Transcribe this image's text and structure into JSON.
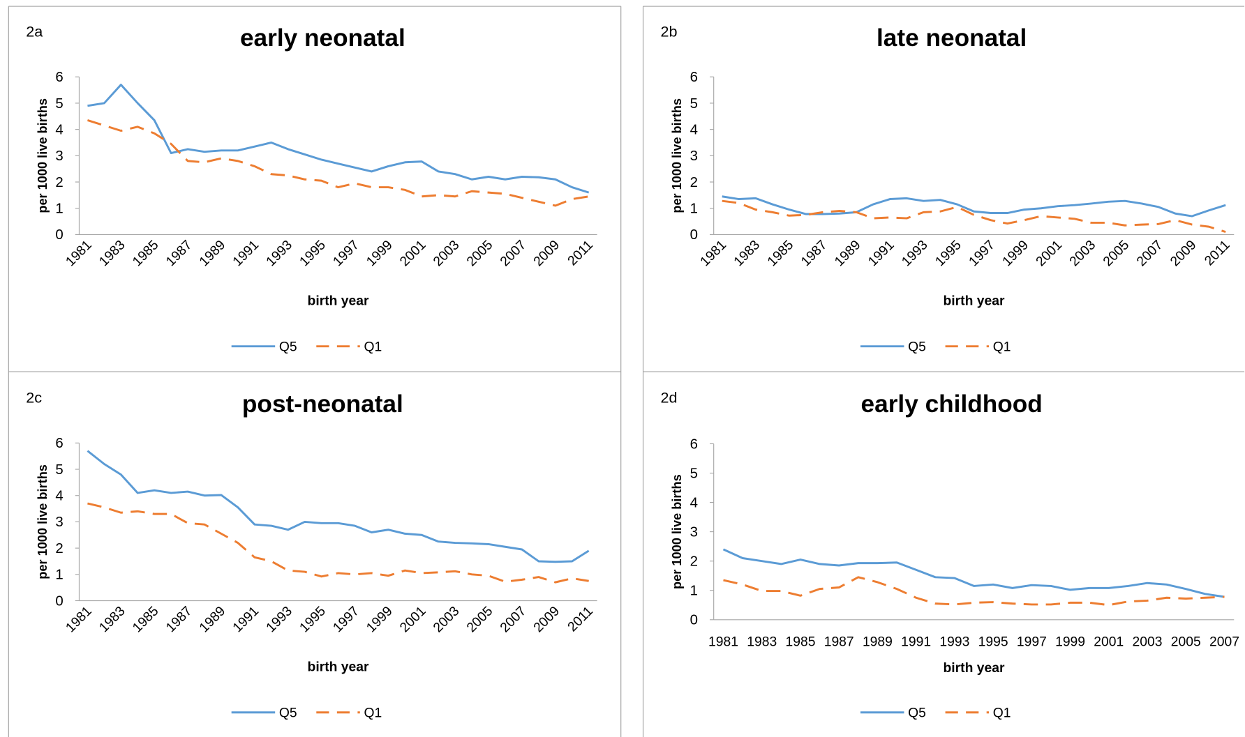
{
  "chart_data": [
    {
      "type": "line",
      "label": "2a",
      "title": "early neonatal",
      "ylabel": "per 1000 live births",
      "xlabel": "birth year",
      "categories": [
        1981,
        null,
        1983,
        null,
        1985,
        null,
        1987,
        null,
        1989,
        null,
        1991,
        null,
        1993,
        null,
        1995,
        null,
        1997,
        null,
        1999,
        null,
        2001,
        null,
        2003,
        null,
        2005,
        null,
        2007,
        null,
        2009,
        null,
        2011
      ],
      "ylim": [
        0,
        6
      ],
      "yticks": [
        0,
        1,
        2,
        3,
        4,
        5,
        6
      ],
      "series": [
        {
          "name": "Q5",
          "color": "#5b9bd5",
          "dashed": false,
          "values": [
            4.9,
            5.0,
            5.7,
            5.0,
            4.35,
            3.1,
            3.25,
            3.15,
            3.2,
            3.2,
            3.35,
            3.5,
            3.25,
            3.05,
            2.85,
            2.7,
            2.55,
            2.4,
            2.6,
            2.75,
            2.78,
            2.4,
            2.3,
            2.1,
            2.2,
            2.1,
            2.2,
            2.18,
            2.1,
            1.8,
            1.6
          ]
        },
        {
          "name": "Q1",
          "color": "#ed7d31",
          "dashed": true,
          "values": [
            4.35,
            4.15,
            3.95,
            4.1,
            3.85,
            3.45,
            2.8,
            2.75,
            2.9,
            2.8,
            2.6,
            2.3,
            2.25,
            2.1,
            2.05,
            1.8,
            1.95,
            1.8,
            1.8,
            1.7,
            1.45,
            1.5,
            1.45,
            1.65,
            1.6,
            1.55,
            1.4,
            1.25,
            1.1,
            1.35,
            1.45
          ]
        }
      ]
    },
    {
      "type": "line",
      "label": "2b",
      "title": "late neonatal",
      "ylabel": "per 1000 live births",
      "xlabel": "birth year",
      "categories": [
        1981,
        null,
        1983,
        null,
        1985,
        null,
        1987,
        null,
        1989,
        null,
        1991,
        null,
        1993,
        null,
        1995,
        null,
        1997,
        null,
        1999,
        null,
        2001,
        null,
        2003,
        null,
        2005,
        null,
        2007,
        null,
        2009,
        null,
        2011
      ],
      "ylim": [
        0,
        6
      ],
      "yticks": [
        0,
        1,
        2,
        3,
        4,
        5,
        6
      ],
      "series": [
        {
          "name": "Q5",
          "color": "#5b9bd5",
          "dashed": false,
          "values": [
            1.45,
            1.35,
            1.38,
            1.15,
            0.95,
            0.78,
            0.78,
            0.8,
            0.85,
            1.15,
            1.35,
            1.38,
            1.28,
            1.32,
            1.15,
            0.88,
            0.82,
            0.82,
            0.95,
            1.0,
            1.08,
            1.12,
            1.18,
            1.25,
            1.28,
            1.18,
            1.05,
            0.8,
            0.7,
            0.92,
            1.12
          ]
        },
        {
          "name": "Q1",
          "color": "#ed7d31",
          "dashed": true,
          "values": [
            1.28,
            1.2,
            0.95,
            0.85,
            0.72,
            0.75,
            0.85,
            0.9,
            0.85,
            0.62,
            0.65,
            0.62,
            0.85,
            0.88,
            1.05,
            0.75,
            0.55,
            0.42,
            0.55,
            0.7,
            0.65,
            0.6,
            0.45,
            0.45,
            0.35,
            0.38,
            0.4,
            0.55,
            0.38,
            0.3,
            0.1
          ]
        }
      ]
    },
    {
      "type": "line",
      "label": "2c",
      "title": "post-neonatal",
      "ylabel": "per 1000 live births",
      "xlabel": "birth year",
      "categories": [
        1981,
        null,
        1983,
        null,
        1985,
        null,
        1987,
        null,
        1989,
        null,
        1991,
        null,
        1993,
        null,
        1995,
        null,
        1997,
        null,
        1999,
        null,
        2001,
        null,
        2003,
        null,
        2005,
        null,
        2007,
        null,
        2009,
        null,
        2011
      ],
      "ylim": [
        0,
        6
      ],
      "yticks": [
        0,
        1,
        2,
        3,
        4,
        5,
        6
      ],
      "series": [
        {
          "name": "Q5",
          "color": "#5b9bd5",
          "dashed": false,
          "values": [
            5.7,
            5.2,
            4.8,
            4.1,
            4.2,
            4.1,
            4.15,
            4.0,
            4.02,
            3.55,
            2.9,
            2.85,
            2.7,
            3.0,
            2.95,
            2.95,
            2.85,
            2.6,
            2.7,
            2.55,
            2.5,
            2.25,
            2.2,
            2.18,
            2.15,
            2.05,
            1.95,
            1.5,
            1.48,
            1.5,
            1.9
          ]
        },
        {
          "name": "Q1",
          "color": "#ed7d31",
          "dashed": true,
          "values": [
            3.7,
            3.55,
            3.35,
            3.4,
            3.3,
            3.3,
            2.95,
            2.9,
            2.55,
            2.2,
            1.65,
            1.5,
            1.15,
            1.1,
            0.92,
            1.05,
            1.0,
            1.05,
            0.95,
            1.15,
            1.05,
            1.08,
            1.12,
            1.0,
            0.95,
            0.72,
            0.8,
            0.9,
            0.7,
            0.85,
            0.75
          ]
        }
      ]
    },
    {
      "type": "line",
      "label": "2d",
      "title": "early childhood",
      "ylabel": "per 1000 live births",
      "xlabel": "birth year",
      "categories": [
        1981,
        null,
        1983,
        null,
        1985,
        null,
        1987,
        null,
        1989,
        null,
        1991,
        null,
        1993,
        null,
        1995,
        null,
        1997,
        null,
        1999,
        null,
        2001,
        null,
        2003,
        null,
        2005,
        null,
        2007
      ],
      "ylim": [
        0,
        6
      ],
      "yticks": [
        0,
        1,
        2,
        3,
        4,
        5,
        6
      ],
      "series": [
        {
          "name": "Q5",
          "color": "#5b9bd5",
          "dashed": false,
          "values": [
            2.4,
            2.1,
            2.0,
            1.9,
            2.05,
            1.9,
            1.85,
            1.93,
            1.93,
            1.95,
            1.7,
            1.45,
            1.42,
            1.15,
            1.2,
            1.08,
            1.18,
            1.15,
            1.02,
            1.08,
            1.08,
            1.15,
            1.25,
            1.2,
            1.05,
            0.88,
            0.78
          ]
        },
        {
          "name": "Q1",
          "color": "#ed7d31",
          "dashed": true,
          "values": [
            1.35,
            1.2,
            0.98,
            0.98,
            0.82,
            1.05,
            1.1,
            1.45,
            1.28,
            1.05,
            0.75,
            0.55,
            0.52,
            0.58,
            0.6,
            0.55,
            0.52,
            0.52,
            0.58,
            0.58,
            0.5,
            0.62,
            0.65,
            0.75,
            0.72,
            0.75,
            0.78
          ]
        }
      ]
    }
  ]
}
